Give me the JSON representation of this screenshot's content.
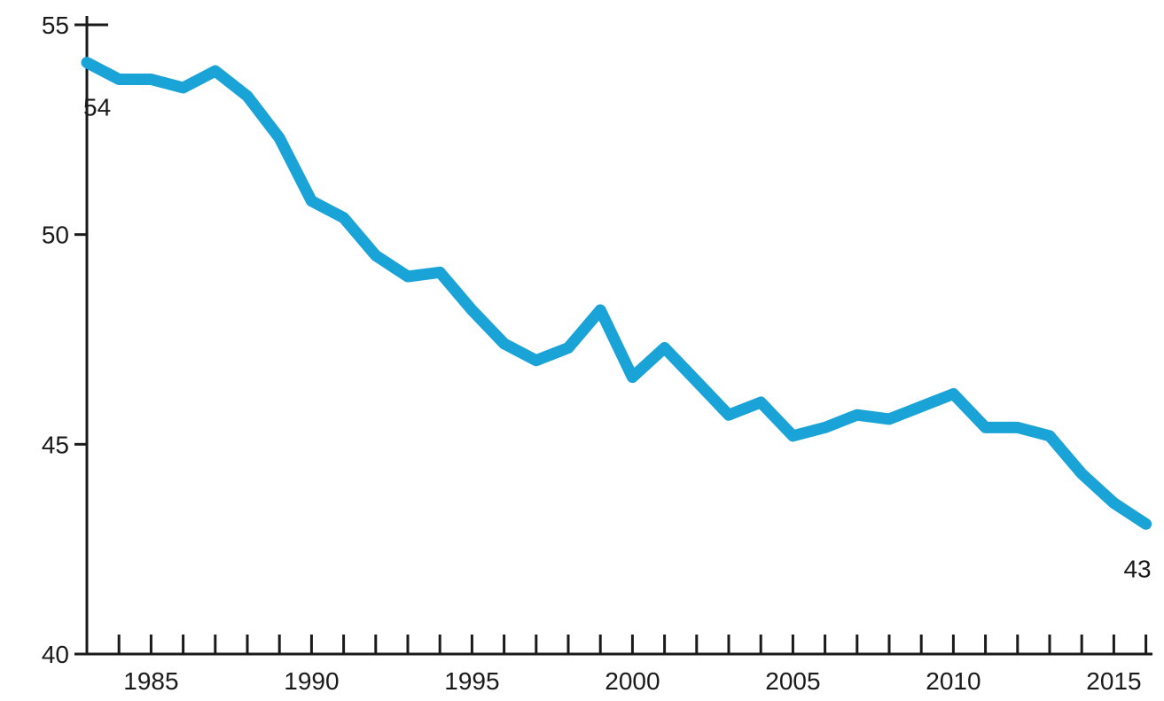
{
  "chart_data": {
    "type": "line",
    "title": "",
    "xlabel": "",
    "ylabel": "",
    "xlim": [
      1983,
      2016
    ],
    "ylim": [
      40,
      55
    ],
    "y_ticks": [
      40,
      45,
      50,
      55
    ],
    "x_tick_labels": [
      1985,
      1990,
      1995,
      2000,
      2005,
      2010,
      2015
    ],
    "x_minor_ticks_every": 1,
    "grid": false,
    "line_color": "#1aa3d6",
    "series": [
      {
        "x": [
          1983,
          1984,
          1985,
          1986,
          1987,
          1988,
          1989,
          1990,
          1991,
          1992,
          1993,
          1994,
          1995,
          1996,
          1997,
          1998,
          1999,
          2000,
          2001,
          2002,
          2003,
          2004,
          2005,
          2006,
          2007,
          2008,
          2009,
          2010,
          2011,
          2012,
          2013,
          2014,
          2015,
          2016
        ],
        "values": [
          54.1,
          53.7,
          53.7,
          53.5,
          53.9,
          53.3,
          52.3,
          50.8,
          50.4,
          49.5,
          49.0,
          49.1,
          48.2,
          47.4,
          47.0,
          47.3,
          48.2,
          46.6,
          47.3,
          46.5,
          45.7,
          46.0,
          45.2,
          45.4,
          45.7,
          45.6,
          45.9,
          46.2,
          45.4,
          45.4,
          45.2,
          44.3,
          43.6,
          43.1
        ]
      }
    ],
    "annotations": [
      {
        "text": "54",
        "x": 1983,
        "y": 54.1,
        "position": "below"
      },
      {
        "text": "43",
        "x": 2016,
        "y": 43.1,
        "position": "below"
      }
    ]
  }
}
